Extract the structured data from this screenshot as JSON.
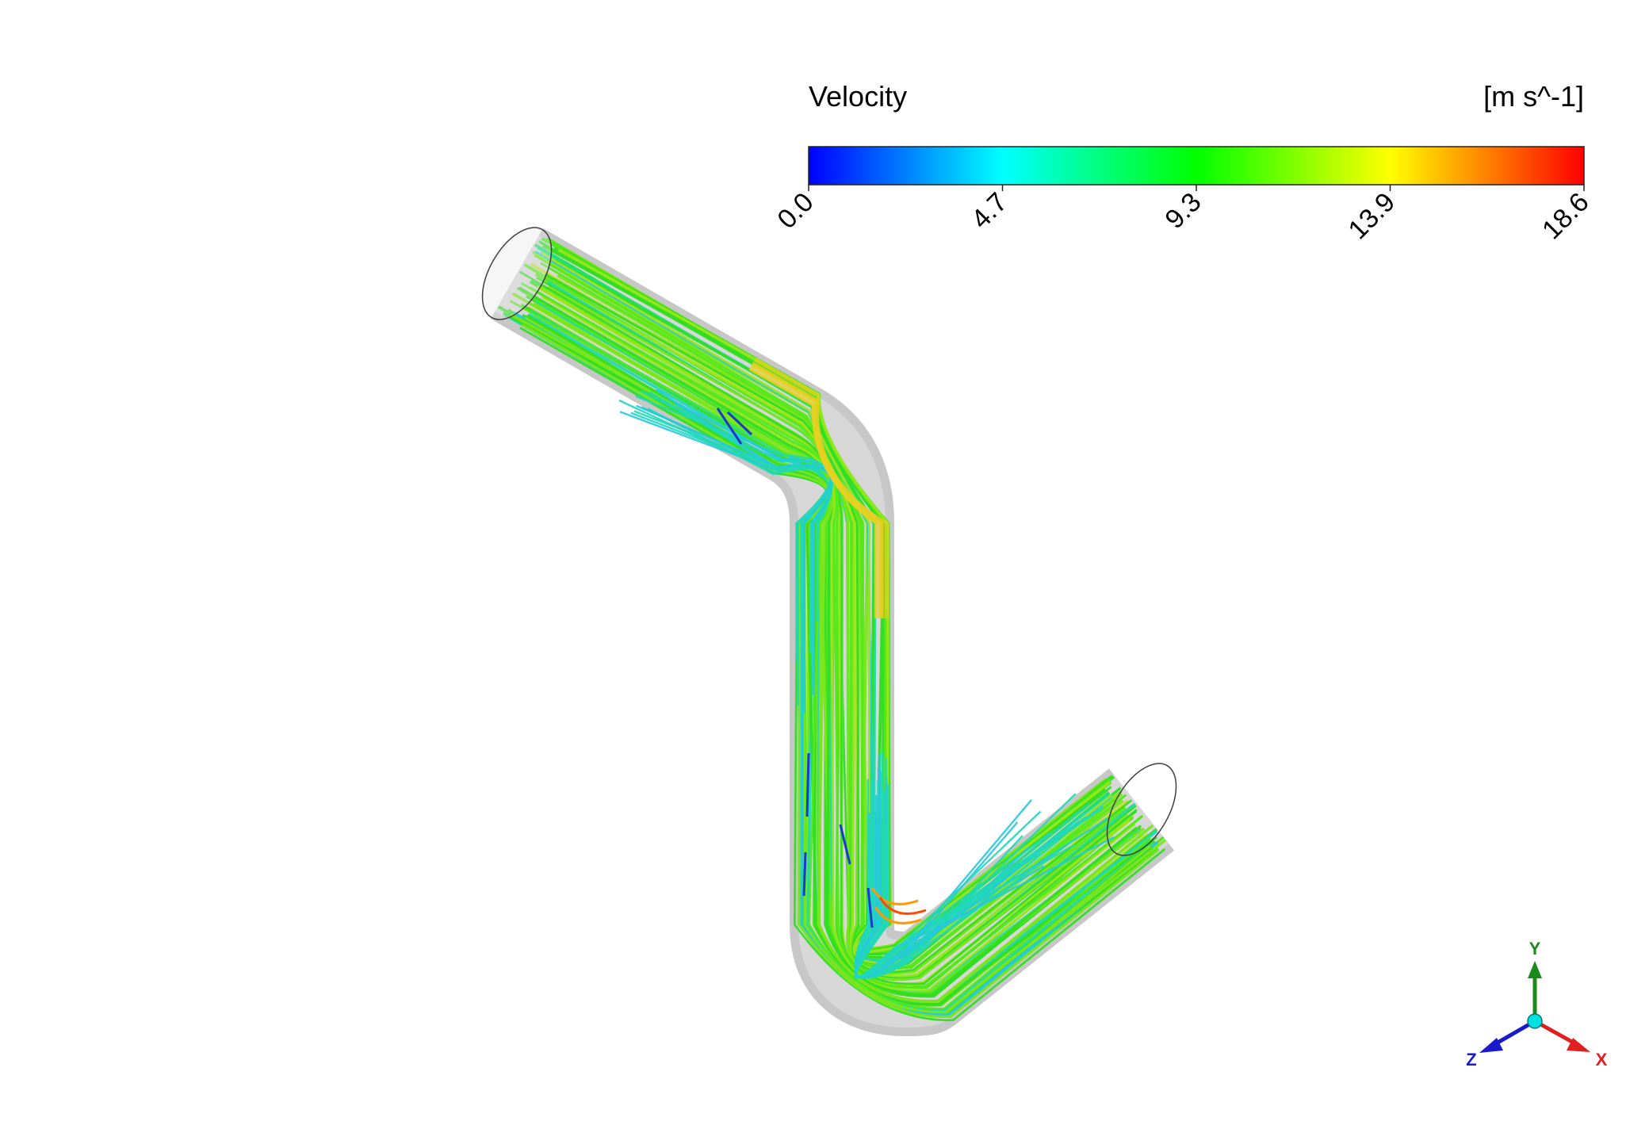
{
  "legend": {
    "title": "Velocity",
    "units": "[m s^-1]",
    "ticks": [
      "0.0",
      "4.7",
      "9.3",
      "13.9",
      "18.6"
    ],
    "range": [
      0.0,
      18.6
    ],
    "colormap": [
      "#0000ff",
      "#0080ff",
      "#00ffff",
      "#00ff80",
      "#00ff00",
      "#80ff00",
      "#ffff00",
      "#ff8000",
      "#ff0000"
    ]
  },
  "triad": {
    "x_label": "X",
    "y_label": "Y",
    "z_label": "Z",
    "x_color": "#e02020",
    "y_color": "#1a8a1a",
    "z_color": "#1a1acc",
    "origin_color": "#00e0e0"
  },
  "scene": {
    "pipe_color": "#c8c8c8",
    "streamline_colors": [
      "#33dd22",
      "#55e81a",
      "#7ae61a",
      "#99e61a",
      "#22e060",
      "#20d8b8",
      "#26c8e0",
      "#b8e02a",
      "#e8d020",
      "#1a3acc"
    ]
  }
}
